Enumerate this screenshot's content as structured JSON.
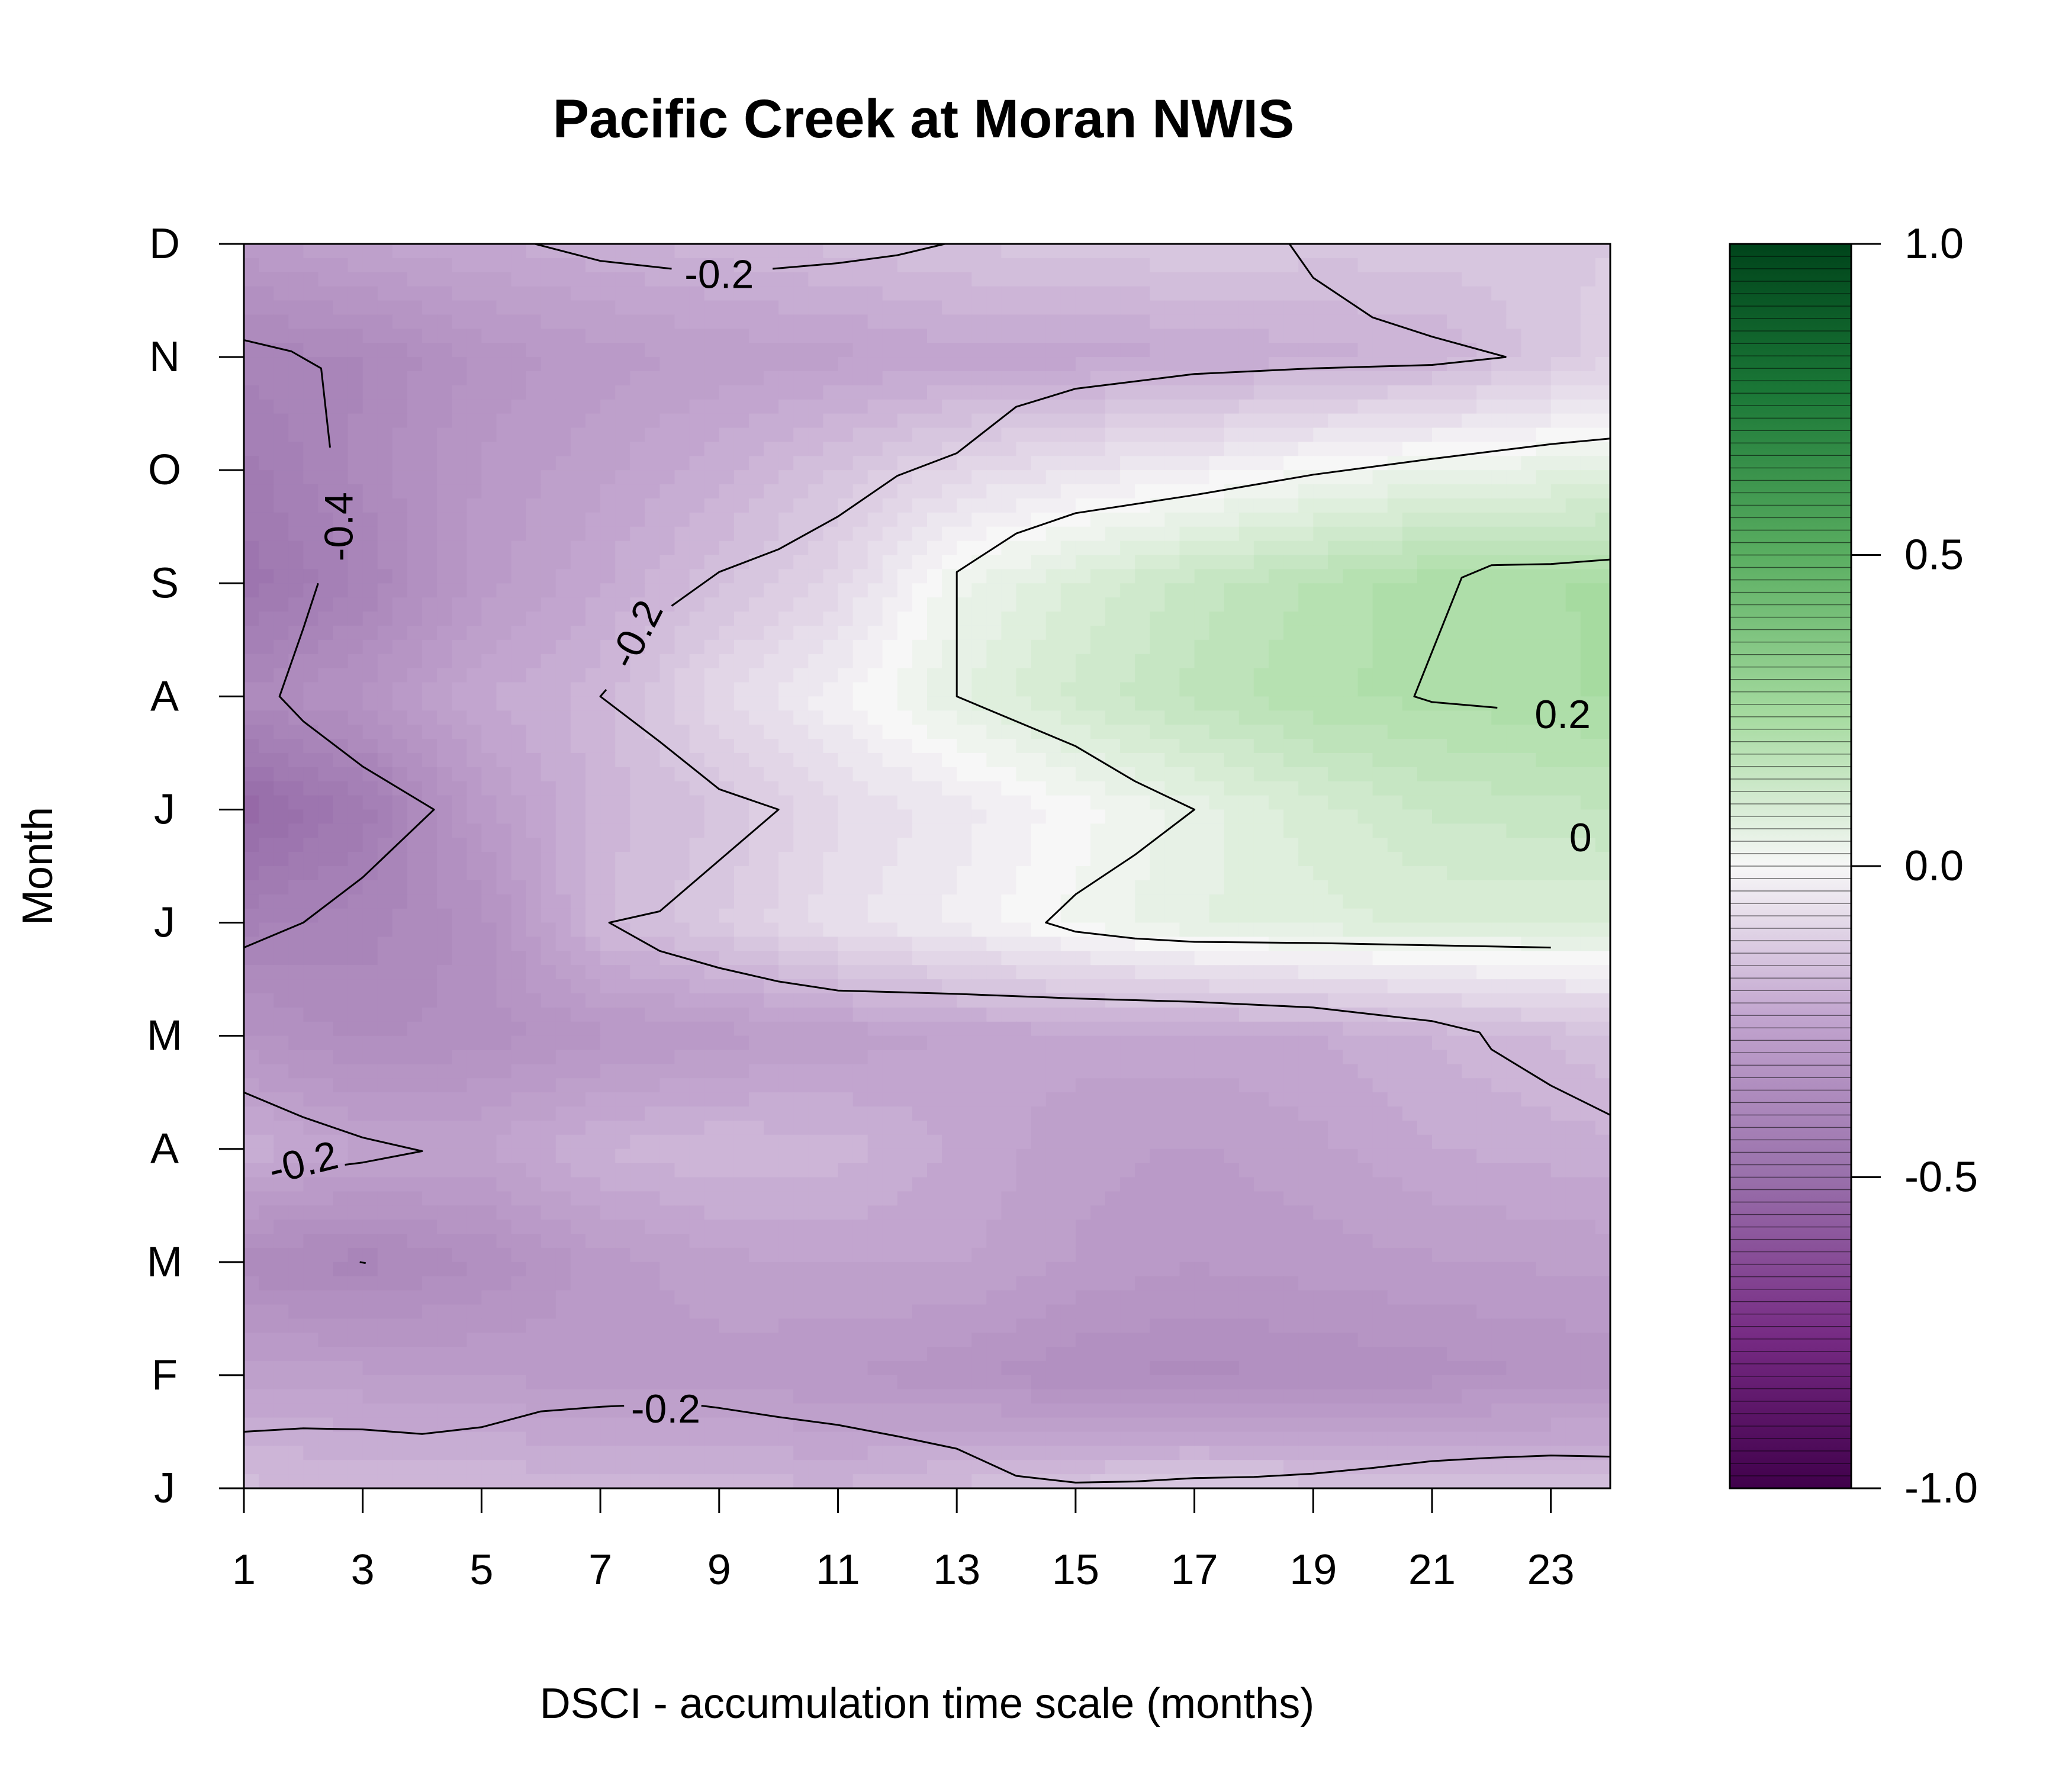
{
  "chart_data": {
    "type": "heatmap",
    "subtype": "filled-contour",
    "title": "Pacific Creek at Moran NWIS",
    "xlabel": "DSCI - accumulation time scale (months)",
    "ylabel": "Month",
    "x": [
      1,
      3,
      5,
      7,
      9,
      11,
      13,
      15,
      17,
      19,
      21,
      23
    ],
    "xlim": [
      1,
      24
    ],
    "x_tick_labels": [
      "1",
      "3",
      "5",
      "7",
      "9",
      "11",
      "13",
      "15",
      "17",
      "19",
      "21",
      "23"
    ],
    "y_tick_labels": [
      "J",
      "F",
      "M",
      "A",
      "M",
      "J",
      "J",
      "A",
      "S",
      "O",
      "N",
      "D"
    ],
    "y_month_index": [
      1,
      2,
      3,
      4,
      5,
      6,
      7,
      8,
      9,
      10,
      11,
      12
    ],
    "legend": {
      "placement": "right",
      "range": [
        -1.0,
        1.0
      ],
      "tick_values": [
        1.0,
        0.5,
        0.0,
        -0.5,
        -1.0
      ],
      "tick_labels": [
        "1.0",
        "0.5",
        "0.0",
        "-0.5",
        "-1.0"
      ],
      "low_color": "#40004b",
      "mid_color": "#f7f7f7",
      "high_color": "#00441b"
    },
    "contour_labels": [
      {
        "text": "-0.2",
        "x": 9.0,
        "y": 11.73,
        "rotate": 0
      },
      {
        "text": "-0.4",
        "x": 2.6,
        "y": 9.5,
        "rotate": -90
      },
      {
        "text": "-0.2",
        "x": 7.6,
        "y": 8.55,
        "rotate": -63
      },
      {
        "text": "0.2",
        "x": 23.2,
        "y": 7.84,
        "rotate": 0
      },
      {
        "text": "0",
        "x": 23.5,
        "y": 6.75,
        "rotate": 0
      },
      {
        "text": "-0.2",
        "x": 2.0,
        "y": 3.88,
        "rotate": -14
      },
      {
        "text": "-0.2",
        "x": 8.1,
        "y": 1.7,
        "rotate": 0
      }
    ],
    "contour_lines": [
      {
        "level": -0.2,
        "points": [
          [
            5.9,
            12
          ],
          [
            7.0,
            11.85
          ],
          [
            8.2,
            11.78
          ]
        ]
      },
      {
        "level": -0.2,
        "points": [
          [
            9.9,
            11.78
          ],
          [
            11.0,
            11.83
          ],
          [
            12.0,
            11.9
          ],
          [
            12.8,
            12
          ]
        ]
      },
      {
        "level": -0.2,
        "points": [
          [
            18.6,
            12
          ],
          [
            19,
            11.7
          ],
          [
            20,
            11.35
          ],
          [
            21,
            11.18
          ],
          [
            22.25,
            11
          ]
        ]
      },
      {
        "level": -0.2,
        "points": [
          [
            22.25,
            11
          ],
          [
            21,
            10.93
          ],
          [
            19,
            10.9
          ],
          [
            17,
            10.85
          ],
          [
            15,
            10.72
          ],
          [
            14,
            10.56
          ],
          [
            13,
            10.15
          ],
          [
            12,
            9.95
          ],
          [
            11,
            9.59
          ],
          [
            10,
            9.3
          ],
          [
            9,
            9.1
          ],
          [
            8.2,
            8.8
          ]
        ]
      },
      {
        "level": -0.2,
        "points": [
          [
            7.1,
            8.06
          ],
          [
            7.0,
            8.0
          ],
          [
            8,
            7.6
          ],
          [
            9,
            7.18
          ],
          [
            10.0,
            7.0
          ],
          [
            9,
            6.55
          ],
          [
            8,
            6.1
          ],
          [
            7.15,
            6.0
          ],
          [
            8,
            5.75
          ],
          [
            9,
            5.6
          ],
          [
            10,
            5.48
          ],
          [
            11,
            5.4
          ],
          [
            13,
            5.37
          ],
          [
            15,
            5.33
          ],
          [
            17,
            5.3
          ],
          [
            19,
            5.25
          ],
          [
            21,
            5.13
          ],
          [
            21.8,
            5.03
          ],
          [
            22,
            4.88
          ],
          [
            23,
            4.56
          ],
          [
            24,
            4.3
          ]
        ]
      },
      {
        "level": -0.4,
        "points": [
          [
            1.0,
            11.15
          ],
          [
            1.8,
            11.05
          ],
          [
            2.3,
            10.9
          ],
          [
            2.45,
            10.2
          ]
        ]
      },
      {
        "level": -0.4,
        "points": [
          [
            2.25,
            9.0
          ],
          [
            2.0,
            8.6
          ],
          [
            1.6,
            8.0
          ],
          [
            2.0,
            7.78
          ],
          [
            3.0,
            7.38
          ],
          [
            4.2,
            7.0
          ],
          [
            3.0,
            6.4
          ],
          [
            2.0,
            6.0
          ],
          [
            1.0,
            5.78
          ]
        ]
      },
      {
        "level": 0.0,
        "points": [
          [
            24,
            10.28
          ],
          [
            23,
            10.23
          ],
          [
            21,
            10.1
          ],
          [
            19,
            9.96
          ],
          [
            17,
            9.78
          ],
          [
            15,
            9.62
          ],
          [
            14,
            9.44
          ],
          [
            13,
            9.1
          ],
          [
            13,
            8.0
          ],
          [
            14,
            7.78
          ],
          [
            15,
            7.56
          ],
          [
            16,
            7.25
          ],
          [
            17.0,
            7.0
          ],
          [
            16,
            6.6
          ],
          [
            15,
            6.25
          ],
          [
            14.5,
            6.0
          ],
          [
            15,
            5.92
          ],
          [
            16,
            5.86
          ],
          [
            17,
            5.83
          ],
          [
            19,
            5.82
          ],
          [
            21,
            5.8
          ],
          [
            23,
            5.78
          ]
        ]
      },
      {
        "level": 0.2,
        "points": [
          [
            24,
            9.21
          ],
          [
            23,
            9.17
          ],
          [
            22,
            9.16
          ],
          [
            21.5,
            9.05
          ],
          [
            20.7,
            8.0
          ],
          [
            21,
            7.95
          ],
          [
            22.1,
            7.9
          ]
        ]
      },
      {
        "level": -0.2,
        "points": [
          [
            1.0,
            4.5
          ],
          [
            2.0,
            4.28
          ],
          [
            3.0,
            4.1
          ],
          [
            4.0,
            3.98
          ],
          [
            3.0,
            3.88
          ],
          [
            2.7,
            3.86
          ]
        ]
      },
      {
        "level": -0.2,
        "points": [
          [
            1.0,
            1.5
          ],
          [
            2.0,
            1.53
          ],
          [
            3.0,
            1.52
          ],
          [
            4.0,
            1.48
          ],
          [
            5.0,
            1.54
          ],
          [
            6.0,
            1.68
          ],
          [
            7.0,
            1.72
          ],
          [
            7.4,
            1.73
          ]
        ]
      },
      {
        "level": -0.2,
        "points": [
          [
            8.7,
            1.73
          ],
          [
            9.0,
            1.71
          ],
          [
            10.0,
            1.63
          ],
          [
            11.0,
            1.56
          ],
          [
            12.0,
            1.46
          ],
          [
            13.0,
            1.35
          ],
          [
            14.0,
            1.11
          ],
          [
            15.0,
            1.05
          ],
          [
            16.0,
            1.06
          ],
          [
            17.0,
            1.09
          ],
          [
            18.0,
            1.1
          ],
          [
            19.0,
            1.13
          ],
          [
            20.0,
            1.18
          ],
          [
            21.0,
            1.24
          ],
          [
            22.0,
            1.27
          ],
          [
            23.0,
            1.29
          ],
          [
            24.0,
            1.28
          ]
        ]
      },
      {
        "level": -0.4,
        "points": [
          [
            2.95,
            3.0
          ],
          [
            3.05,
            2.99
          ]
        ]
      }
    ],
    "field_grid": {
      "x": [
        1,
        3,
        5,
        7,
        9,
        11,
        13,
        15,
        17,
        19,
        21,
        24
      ],
      "y": [
        1,
        2,
        3,
        4,
        5,
        6,
        7,
        8,
        9,
        10,
        11,
        12
      ],
      "z": [
        [
          -0.18,
          -0.19,
          -0.19,
          -0.2,
          -0.2,
          -0.21,
          -0.18,
          -0.15,
          -0.14,
          -0.15,
          -0.16,
          -0.17
        ],
        [
          -0.27,
          -0.28,
          -0.29,
          -0.3,
          -0.3,
          -0.31,
          -0.33,
          -0.36,
          -0.37,
          -0.36,
          -0.35,
          -0.33
        ],
        [
          -0.38,
          -0.4,
          -0.36,
          -0.3,
          -0.27,
          -0.26,
          -0.26,
          -0.29,
          -0.31,
          -0.3,
          -0.29,
          -0.28
        ],
        [
          -0.22,
          -0.26,
          -0.26,
          -0.21,
          -0.19,
          -0.2,
          -0.24,
          -0.28,
          -0.29,
          -0.27,
          -0.24,
          -0.22
        ],
        [
          -0.33,
          -0.37,
          -0.35,
          -0.32,
          -0.3,
          -0.28,
          -0.26,
          -0.25,
          -0.25,
          -0.24,
          -0.21,
          -0.17
        ],
        [
          -0.42,
          -0.4,
          -0.35,
          -0.19,
          -0.14,
          -0.07,
          -0.03,
          0.02,
          0.06,
          0.08,
          0.09,
          0.09
        ],
        [
          -0.53,
          -0.45,
          -0.3,
          -0.2,
          -0.16,
          -0.09,
          -0.05,
          0.0,
          0.05,
          0.1,
          0.14,
          0.16
        ],
        [
          -0.38,
          -0.33,
          -0.24,
          -0.2,
          -0.09,
          -0.02,
          0.06,
          0.12,
          0.17,
          0.21,
          0.22,
          0.24
        ],
        [
          -0.48,
          -0.41,
          -0.3,
          -0.24,
          -0.17,
          -0.1,
          0.03,
          0.09,
          0.15,
          0.19,
          0.23,
          0.24
        ],
        [
          -0.45,
          -0.38,
          -0.31,
          -0.27,
          -0.22,
          -0.16,
          -0.1,
          -0.06,
          -0.03,
          0.01,
          0.04,
          0.06
        ],
        [
          -0.4,
          -0.39,
          -0.33,
          -0.3,
          -0.28,
          -0.27,
          -0.25,
          -0.25,
          -0.24,
          -0.22,
          -0.21,
          -0.12
        ],
        [
          -0.3,
          -0.26,
          -0.24,
          -0.22,
          -0.2,
          -0.18,
          -0.16,
          -0.15,
          -0.14,
          -0.15,
          -0.15,
          -0.14
        ]
      ]
    }
  }
}
